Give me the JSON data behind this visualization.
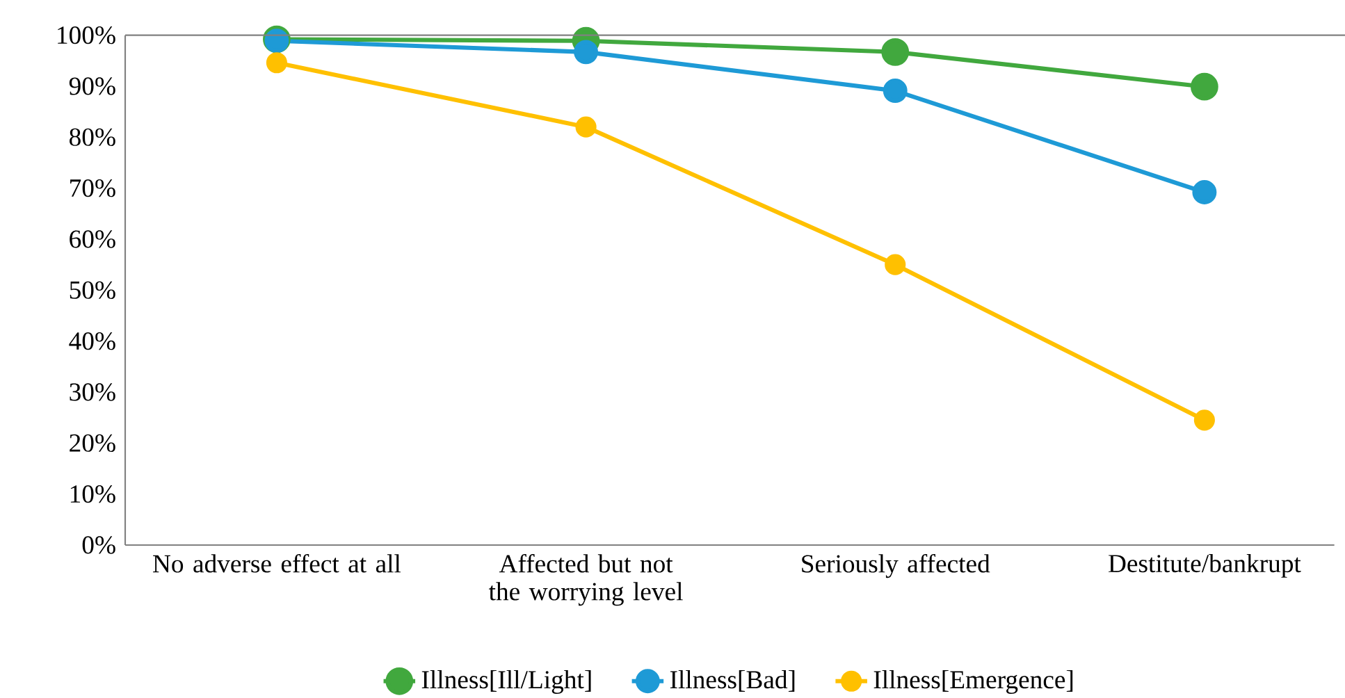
{
  "chart_data": {
    "type": "line",
    "categories": [
      "No adverse effect at all",
      "Affected but not the worrying level",
      "Seriously affected",
      "Destitute/bankrupt"
    ],
    "series": [
      {
        "name": "Illness[Ill/Light]",
        "color": "#41a83e",
        "values": [
          99.2,
          98.9,
          96.7,
          89.9
        ]
      },
      {
        "name": "Illness[Bad]",
        "color": "#1e9ad6",
        "values": [
          98.9,
          96.7,
          89.1,
          69.2
        ]
      },
      {
        "name": "Illness[Emergence]",
        "color": "#ffc000",
        "values": [
          94.6,
          82.0,
          55.0,
          24.5
        ]
      }
    ],
    "ylim": [
      0,
      100
    ],
    "yticks": [
      {
        "value": 0,
        "label": "0%"
      },
      {
        "value": 10,
        "label": "10%"
      },
      {
        "value": 20,
        "label": "20%"
      },
      {
        "value": 30,
        "label": "30%"
      },
      {
        "value": 40,
        "label": "40%"
      },
      {
        "value": 50,
        "label": "50%"
      },
      {
        "value": 60,
        "label": "60%"
      },
      {
        "value": 70,
        "label": "70%"
      },
      {
        "value": 80,
        "label": "80%"
      },
      {
        "value": 90,
        "label": "90%"
      },
      {
        "value": 100,
        "label": "100%"
      }
    ],
    "grid": false,
    "legend": "bottom",
    "marker": "circle",
    "line_style": "solid"
  }
}
